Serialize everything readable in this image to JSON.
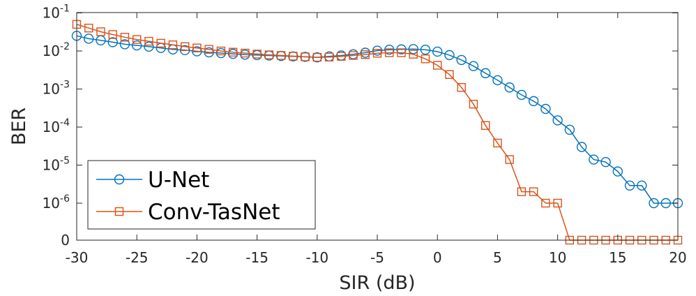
{
  "chart_data": {
    "type": "line",
    "xlabel": "SIR (dB)",
    "ylabel": "BER",
    "xlim": [
      -30,
      20
    ],
    "x_ticks": [
      -30,
      -25,
      -20,
      -15,
      -10,
      -5,
      0,
      5,
      10,
      15,
      20
    ],
    "y_scale": "log with zero at bottom",
    "y_ticks": [
      {
        "value": 0,
        "base": "0",
        "exp": ""
      },
      {
        "value": 1e-06,
        "base": "10",
        "exp": "-6"
      },
      {
        "value": 1e-05,
        "base": "10",
        "exp": "-5"
      },
      {
        "value": 0.0001,
        "base": "10",
        "exp": "-4"
      },
      {
        "value": 0.001,
        "base": "10",
        "exp": "-3"
      },
      {
        "value": 0.01,
        "base": "10",
        "exp": "-2"
      },
      {
        "value": 0.1,
        "base": "10",
        "exp": "-1"
      }
    ],
    "grid": false,
    "legend_position": "bottom-left",
    "x": [
      -30,
      -29,
      -28,
      -27,
      -26,
      -25,
      -24,
      -23,
      -22,
      -21,
      -20,
      -19,
      -18,
      -17,
      -16,
      -15,
      -14,
      -13,
      -12,
      -11,
      -10,
      -9,
      -8,
      -7,
      -6,
      -5,
      -4,
      -3,
      -2,
      -1,
      0,
      1,
      2,
      3,
      4,
      5,
      6,
      7,
      8,
      9,
      10,
      11,
      12,
      13,
      14,
      15,
      16,
      17,
      18,
      19,
      20
    ],
    "series": [
      {
        "name": "U-Net",
        "color": "#0072BD",
        "marker": "circle",
        "values": [
          0.025,
          0.021,
          0.019,
          0.017,
          0.015,
          0.014,
          0.013,
          0.012,
          0.011,
          0.0105,
          0.0098,
          0.0092,
          0.0088,
          0.0084,
          0.008,
          0.0078,
          0.0076,
          0.0074,
          0.0072,
          0.007,
          0.0068,
          0.0072,
          0.0076,
          0.0082,
          0.009,
          0.0102,
          0.0108,
          0.011,
          0.0112,
          0.0108,
          0.0096,
          0.0078,
          0.0058,
          0.004,
          0.0026,
          0.0017,
          0.0011,
          0.0007,
          0.00048,
          0.0003,
          0.00015,
          8.5e-05,
          3e-05,
          1.4e-05,
          1.2e-05,
          6.8e-06,
          2.9e-06,
          2.9e-06,
          1e-06,
          1e-06,
          1e-06
        ]
      },
      {
        "name": "Conv-TasNet",
        "color": "#D95319",
        "marker": "square",
        "values": [
          0.05,
          0.04,
          0.032,
          0.027,
          0.023,
          0.02,
          0.018,
          0.016,
          0.0145,
          0.013,
          0.012,
          0.011,
          0.01,
          0.0093,
          0.0088,
          0.0083,
          0.0079,
          0.0076,
          0.0073,
          0.007,
          0.0068,
          0.0069,
          0.0072,
          0.0076,
          0.008,
          0.0087,
          0.009,
          0.009,
          0.0082,
          0.0062,
          0.0042,
          0.0024,
          0.0011,
          0.0004,
          0.00011,
          3.8e-05,
          1.4e-05,
          2e-06,
          2e-06,
          1e-06,
          1e-06,
          0,
          0,
          0,
          0,
          0,
          0,
          0,
          0,
          0,
          0
        ]
      }
    ]
  }
}
